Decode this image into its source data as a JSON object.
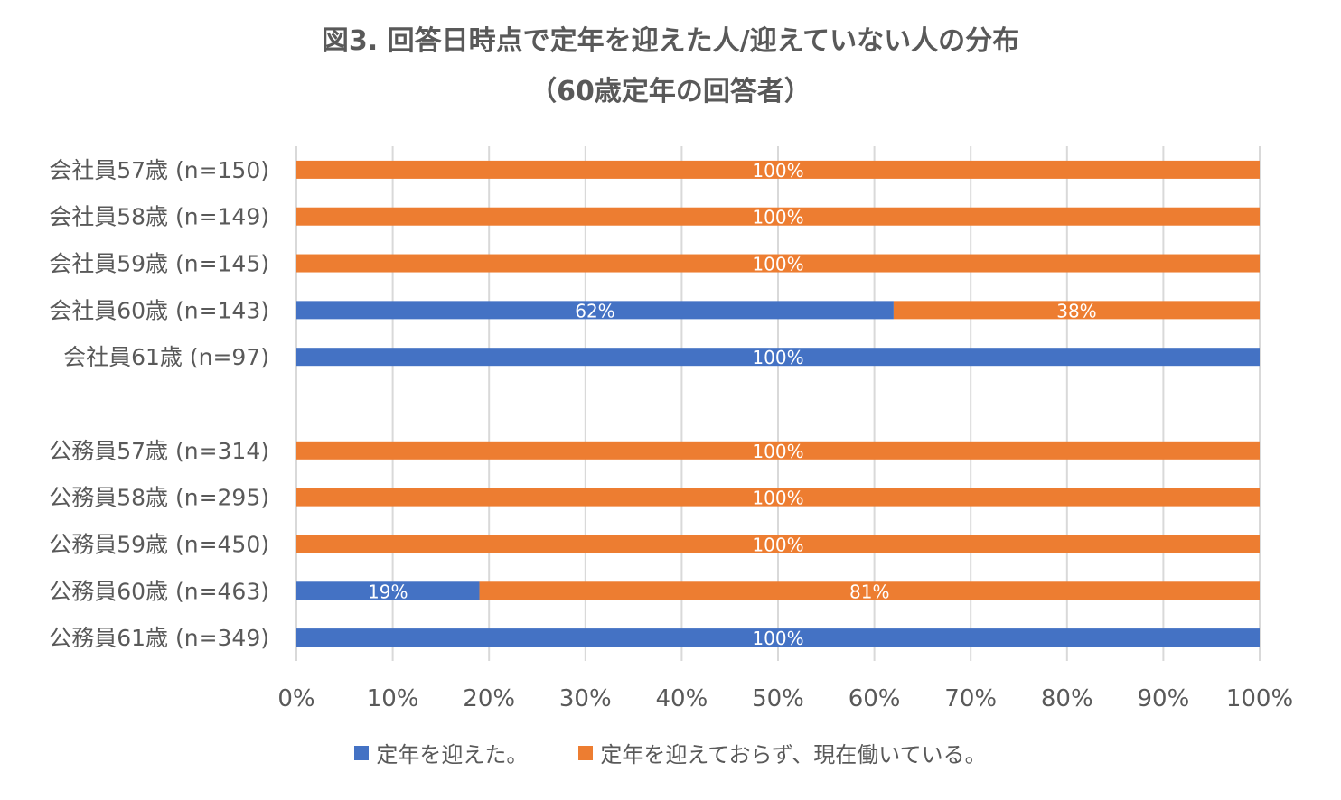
{
  "chart_data": {
    "type": "bar",
    "orientation": "horizontal",
    "stacked": "percent",
    "title": "図3. 回答日時点で定年を迎えた人/迎えていない人の分布",
    "subtitle": "（60歳定年の回答者）",
    "categories": [
      "会社員57歳 (n=150)",
      "会社員58歳 (n=149)",
      "会社員59歳 (n=145)",
      "会社員60歳 (n=143)",
      "会社員61歳 (n=97)",
      "",
      "公務員57歳 (n=314)",
      "公務員58歳 (n=295)",
      "公務員59歳 (n=450)",
      "公務員60歳 (n=463)",
      "公務員61歳 (n=349)"
    ],
    "series": [
      {
        "name": "定年を迎えた。",
        "color": "#4472C4",
        "values": [
          0,
          0,
          0,
          62,
          100,
          null,
          0,
          0,
          0,
          19,
          100
        ],
        "labels": [
          "",
          "",
          "",
          "62%",
          "100%",
          "",
          "",
          "",
          "",
          "19%",
          "100%"
        ]
      },
      {
        "name": "定年を迎えておらず、現在働いている。",
        "color": "#ED7D31",
        "values": [
          100,
          100,
          100,
          38,
          0,
          null,
          100,
          100,
          100,
          81,
          0
        ],
        "labels": [
          "100%",
          "100%",
          "100%",
          "38%",
          "",
          "",
          "100%",
          "100%",
          "100%",
          "81%",
          ""
        ]
      }
    ],
    "xlim": [
      0,
      100
    ],
    "xticks": [
      "0%",
      "10%",
      "20%",
      "30%",
      "40%",
      "50%",
      "60%",
      "70%",
      "80%",
      "90%",
      "100%"
    ],
    "grid": true,
    "legend_position": "bottom"
  }
}
